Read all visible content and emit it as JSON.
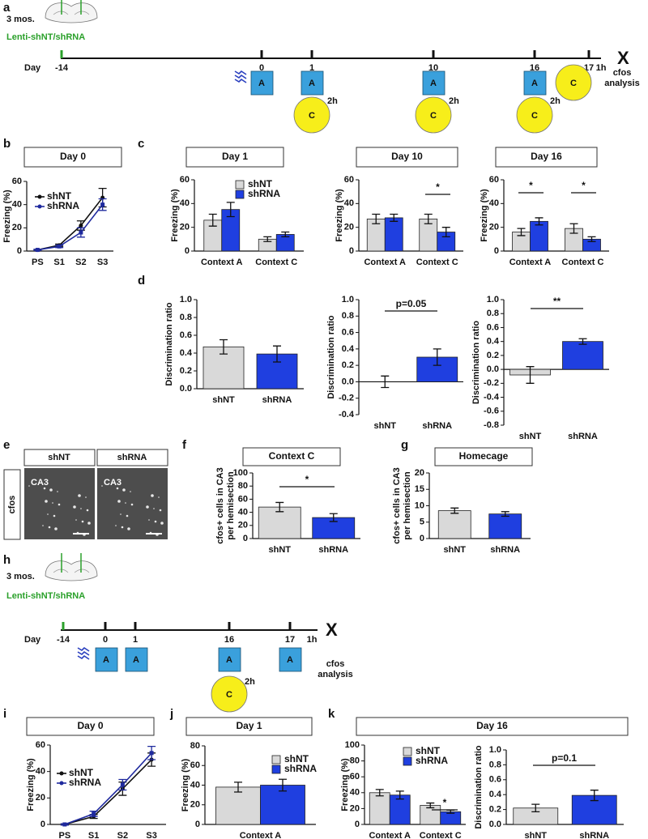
{
  "panel_a": {
    "panel": "a",
    "age": "3 mos.",
    "virus": "Lenti-shNT/shRNA",
    "day_word": "Day",
    "days": [
      "-14",
      "0",
      "1",
      "10",
      "16",
      "17"
    ],
    "end": "1h",
    "end_mark": "X",
    "sessions": [
      "A",
      "A",
      "A",
      "A"
    ],
    "tests": [
      "C",
      "C",
      "C",
      "C"
    ],
    "delays": [
      "2h",
      "2h",
      "2h"
    ],
    "analysis": [
      "cfos",
      "analysis"
    ]
  },
  "panel_e": {
    "panel": "e",
    "columns": [
      "shNT",
      "shRNA"
    ],
    "regions": [
      "CA3",
      "CA3"
    ],
    "stain": "cfos"
  },
  "panel_h": {
    "panel": "h",
    "age": "3 mos.",
    "virus": "Lenti-shNT/shRNA",
    "day_word": "Day",
    "days": [
      "-14",
      "0",
      "1",
      "16",
      "17"
    ],
    "end": "1h",
    "end_mark": "X",
    "sessions": [
      "A",
      "A",
      "A",
      "A"
    ],
    "tests": [
      "C"
    ],
    "delays": [
      "2h"
    ],
    "analysis": [
      "cfos",
      "analysis"
    ]
  },
  "chart_data": [
    {
      "type": "line",
      "panel": "b",
      "title": "Day 0",
      "ylabel": "Freezing (%)",
      "categories": [
        "PS",
        "S1",
        "S2",
        "S3"
      ],
      "series": [
        {
          "name": "shNT",
          "color": "#111111",
          "values": [
            1,
            5,
            22,
            46
          ],
          "errors": [
            0.5,
            1,
            4,
            8
          ]
        },
        {
          "name": "shRNA",
          "color": "#1f2a9e",
          "values": [
            1,
            4,
            16,
            40
          ],
          "errors": [
            0.5,
            1,
            4,
            5
          ]
        }
      ],
      "ylim": [
        0,
        60
      ],
      "yticks": [
        0,
        20,
        40,
        60
      ],
      "legend": true
    },
    {
      "type": "bar",
      "panel": "c",
      "title": "Day 1",
      "ylabel": "Freezing (%)",
      "categories": [
        "Context A",
        "Context C"
      ],
      "series": [
        {
          "name": "shNT",
          "color": "#d9d9d9",
          "values": [
            26,
            10
          ],
          "errors": [
            5,
            2
          ]
        },
        {
          "name": "shRNA",
          "color": "#1f3fe0",
          "values": [
            35,
            14
          ],
          "errors": [
            6,
            2
          ]
        }
      ],
      "ylim": [
        0,
        60
      ],
      "yticks": [
        0,
        20,
        40,
        60
      ],
      "legend": true
    },
    {
      "type": "bar",
      "title": "Day 10",
      "ylabel": "Freezing (%)",
      "categories": [
        "Context A",
        "Context C"
      ],
      "series": [
        {
          "color": "#d9d9d9",
          "values": [
            27,
            27
          ],
          "errors": [
            4,
            4
          ]
        },
        {
          "color": "#1f3fe0",
          "values": [
            28,
            16
          ],
          "errors": [
            3,
            4
          ]
        }
      ],
      "ylim": [
        0,
        60
      ],
      "yticks": [
        0,
        20,
        40,
        60
      ],
      "annotations": [
        "*"
      ]
    },
    {
      "type": "bar",
      "title": "Day 16",
      "ylabel": "Freezing (%)",
      "categories": [
        "Context A",
        "Context C"
      ],
      "series": [
        {
          "color": "#d9d9d9",
          "values": [
            16,
            19
          ],
          "errors": [
            3,
            4
          ]
        },
        {
          "color": "#1f3fe0",
          "values": [
            25,
            10
          ],
          "errors": [
            3,
            2
          ]
        }
      ],
      "ylim": [
        0,
        60
      ],
      "yticks": [
        0,
        20,
        40,
        60
      ],
      "annotations": [
        "*",
        "*"
      ]
    },
    {
      "type": "bar",
      "panel": "d",
      "ylabel": "Discrimination ratio",
      "categories": [
        "shNT",
        "shRNA"
      ],
      "values": [
        0.47,
        0.39
      ],
      "errors": [
        0.08,
        0.09
      ],
      "colors": [
        "#d9d9d9",
        "#1f3fe0"
      ],
      "ylim": [
        0,
        1
      ],
      "yticks": [
        {
          "value": 0,
          "label": "0.0"
        },
        0.2,
        0.4,
        0.6,
        0.8,
        {
          "value": 1,
          "label": "1.0"
        }
      ]
    },
    {
      "type": "bar",
      "ylabel": "Discrimination ratio",
      "categories": [
        "shNT",
        "shRNA"
      ],
      "values": [
        0.0,
        0.3
      ],
      "errors": [
        0.07,
        0.1
      ],
      "colors": [
        "#d9d9d9",
        "#1f3fe0"
      ],
      "ylim": [
        -0.4,
        1
      ],
      "yticks": [
        -0.4,
        -0.2,
        {
          "value": 0,
          "label": "0.0"
        },
        0.2,
        0.4,
        0.6,
        0.8,
        {
          "value": 1,
          "label": "1.0"
        }
      ],
      "annotations": [
        "p=0.05"
      ]
    },
    {
      "type": "bar",
      "ylabel": "Discrimination ratio",
      "categories": [
        "shNT",
        "shRNA"
      ],
      "values": [
        -0.08,
        0.4
      ],
      "errors": [
        0.12,
        0.04
      ],
      "colors": [
        "#d9d9d9",
        "#1f3fe0"
      ],
      "ylim": [
        -0.8,
        1
      ],
      "yticks": [
        -0.8,
        -0.6,
        -0.4,
        -0.2,
        {
          "value": 0,
          "label": "0.0"
        },
        0.2,
        0.4,
        0.6,
        0.8,
        {
          "value": 1,
          "label": "1.0"
        }
      ],
      "annotations": [
        "**"
      ]
    },
    {
      "type": "bar",
      "panel": "f",
      "title": "Context C",
      "ylabel": [
        "cfos+ cells in CA3",
        "per hemisection"
      ],
      "categories": [
        "shNT",
        "shRNA"
      ],
      "values": [
        48,
        32
      ],
      "errors": [
        7,
        6
      ],
      "colors": [
        "#d9d9d9",
        "#1f3fe0"
      ],
      "ylim": [
        0,
        100
      ],
      "yticks": [
        0,
        20,
        40,
        60,
        80,
        100
      ],
      "annotations": [
        "*"
      ]
    },
    {
      "type": "bar",
      "panel": "g",
      "title": "Homecage",
      "ylabel": [
        "cfos+ cells in CA3",
        "per hemisection"
      ],
      "categories": [
        "shNT",
        "shRNA"
      ],
      "values": [
        8.5,
        7.5
      ],
      "errors": [
        0.8,
        0.7
      ],
      "colors": [
        "#d9d9d9",
        "#1f3fe0"
      ],
      "ylim": [
        0,
        20
      ],
      "yticks": [
        0,
        5,
        10,
        15,
        20
      ]
    },
    {
      "type": "line",
      "panel": "i",
      "title": "Day 0",
      "ylabel": "Freezing (%)",
      "categories": [
        "PS",
        "S1",
        "S2",
        "S3"
      ],
      "series": [
        {
          "name": "shNT",
          "color": "#111111",
          "values": [
            0,
            6,
            27,
            49
          ],
          "errors": [
            0.5,
            1.5,
            5,
            5
          ]
        },
        {
          "name": "shRNA",
          "color": "#1f2a9e",
          "values": [
            0,
            8,
            30,
            54
          ],
          "errors": [
            0.5,
            2,
            4,
            5
          ]
        }
      ],
      "ylim": [
        0,
        60
      ],
      "yticks": [
        0,
        20,
        40,
        60
      ],
      "legend": true
    },
    {
      "type": "bar",
      "panel": "j",
      "title": "Day 1",
      "ylabel": "Freezing (%)",
      "categories": [
        "Context A"
      ],
      "series": [
        {
          "name": "shNT",
          "color": "#d9d9d9",
          "values": [
            38
          ],
          "errors": [
            5
          ]
        },
        {
          "name": "shRNA",
          "color": "#1f3fe0",
          "values": [
            40
          ],
          "errors": [
            6
          ]
        }
      ],
      "ylim": [
        0,
        80
      ],
      "yticks": [
        0,
        20,
        40,
        60,
        80
      ],
      "legend": true
    },
    {
      "type": "bar",
      "panel": "k",
      "title": "Day 16",
      "ylabel": "Freezing (%)",
      "categories": [
        "Context A",
        "Context C"
      ],
      "series": [
        {
          "name": "shNT",
          "color": "#d9d9d9",
          "values": [
            40,
            24
          ],
          "errors": [
            4,
            3
          ]
        },
        {
          "name": "shRNA",
          "color": "#1f3fe0",
          "values": [
            37,
            16
          ],
          "errors": [
            5,
            2
          ]
        }
      ],
      "ylim": [
        0,
        100
      ],
      "yticks": [
        0,
        20,
        40,
        60,
        80,
        100
      ],
      "legend": true,
      "annotations": [
        "*"
      ]
    },
    {
      "type": "bar",
      "ylabel": "Discrimination ratio",
      "categories": [
        "shNT",
        "shRNA"
      ],
      "values": [
        0.22,
        0.39
      ],
      "errors": [
        0.05,
        0.07
      ],
      "colors": [
        "#d9d9d9",
        "#1f3fe0"
      ],
      "ylim": [
        0,
        1
      ],
      "yticks": [
        {
          "value": 0,
          "label": "0.0"
        },
        0.2,
        0.4,
        0.6,
        0.8,
        {
          "value": 1,
          "label": "1.0"
        }
      ],
      "annotations": [
        "p=0.1"
      ]
    }
  ]
}
